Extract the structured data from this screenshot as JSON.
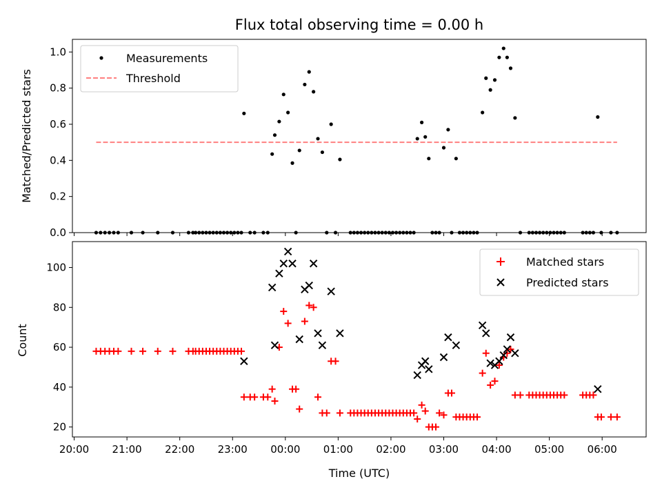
{
  "chart_data": [
    {
      "type": "scatter",
      "title": "Flux total observing time = 0.00 h",
      "xlabel": "",
      "ylabel": "Matched/Predicted stars",
      "xlim": [
        "19:58",
        "06:50"
      ],
      "ylim": [
        0,
        1.07
      ],
      "yticks": [
        "0.0",
        "0.2",
        "0.4",
        "0.6",
        "0.8",
        "1.0"
      ],
      "grid": false,
      "legend_position": "upper-left",
      "series": [
        {
          "name": "Measurements",
          "marker": "dot",
          "color": "#000000",
          "points": [
            [
              "20:25",
              0
            ],
            [
              "20:30",
              0
            ],
            [
              "20:35",
              0
            ],
            [
              "20:40",
              0
            ],
            [
              "20:45",
              0
            ],
            [
              "20:50",
              0
            ],
            [
              "21:05",
              0
            ],
            [
              "21:18",
              0
            ],
            [
              "21:35",
              0
            ],
            [
              "21:52",
              0
            ],
            [
              "22:10",
              0
            ],
            [
              "22:15",
              0
            ],
            [
              "22:18",
              0
            ],
            [
              "22:22",
              0
            ],
            [
              "22:26",
              0
            ],
            [
              "22:30",
              0
            ],
            [
              "22:34",
              0
            ],
            [
              "22:38",
              0
            ],
            [
              "22:42",
              0
            ],
            [
              "22:46",
              0
            ],
            [
              "22:50",
              0
            ],
            [
              "22:54",
              0
            ],
            [
              "22:58",
              0
            ],
            [
              "23:02",
              0
            ],
            [
              "23:06",
              0
            ],
            [
              "23:10",
              0
            ],
            [
              "23:13",
              0.66
            ],
            [
              "23:20",
              0
            ],
            [
              "23:25",
              0
            ],
            [
              "23:35",
              0
            ],
            [
              "23:40",
              0
            ],
            [
              "23:45",
              0.435
            ],
            [
              "23:48",
              0.54
            ],
            [
              "23:53",
              0.615
            ],
            [
              "23:58",
              0.765
            ],
            [
              "00:03",
              0.665
            ],
            [
              "00:08",
              0.385
            ],
            [
              "00:12",
              0
            ],
            [
              "00:16",
              0.455
            ],
            [
              "00:22",
              0.82
            ],
            [
              "00:27",
              0.89
            ],
            [
              "00:32",
              0.78
            ],
            [
              "00:37",
              0.52
            ],
            [
              "00:42",
              0.445
            ],
            [
              "00:47",
              0
            ],
            [
              "00:52",
              0.6
            ],
            [
              "00:57",
              0
            ],
            [
              "01:02",
              0.405
            ],
            [
              "01:14",
              0
            ],
            [
              "01:18",
              0
            ],
            [
              "01:22",
              0
            ],
            [
              "01:26",
              0
            ],
            [
              "01:30",
              0
            ],
            [
              "01:34",
              0
            ],
            [
              "01:38",
              0
            ],
            [
              "01:42",
              0
            ],
            [
              "01:46",
              0
            ],
            [
              "01:50",
              0
            ],
            [
              "01:54",
              0
            ],
            [
              "01:58",
              0
            ],
            [
              "02:02",
              0
            ],
            [
              "02:06",
              0
            ],
            [
              "02:10",
              0
            ],
            [
              "02:14",
              0
            ],
            [
              "02:18",
              0
            ],
            [
              "02:22",
              0
            ],
            [
              "02:26",
              0
            ],
            [
              "02:30",
              0.52
            ],
            [
              "02:35",
              0.61
            ],
            [
              "02:39",
              0.53
            ],
            [
              "02:43",
              0.41
            ],
            [
              "02:47",
              0
            ],
            [
              "02:51",
              0
            ],
            [
              "02:55",
              0
            ],
            [
              "03:00",
              0.47
            ],
            [
              "03:05",
              0.57
            ],
            [
              "03:09",
              0
            ],
            [
              "03:14",
              0.41
            ],
            [
              "03:18",
              0
            ],
            [
              "03:22",
              0
            ],
            [
              "03:26",
              0
            ],
            [
              "03:30",
              0
            ],
            [
              "03:34",
              0
            ],
            [
              "03:38",
              0
            ],
            [
              "03:44",
              0.665
            ],
            [
              "03:48",
              0.855
            ],
            [
              "03:53",
              0.79
            ],
            [
              "03:58",
              0.845
            ],
            [
              "04:03",
              0.97
            ],
            [
              "04:08",
              1.02
            ],
            [
              "04:12",
              0.97
            ],
            [
              "04:16",
              0.91
            ],
            [
              "04:21",
              0.635
            ],
            [
              "04:27",
              0
            ],
            [
              "04:37",
              0
            ],
            [
              "04:41",
              0
            ],
            [
              "04:45",
              0
            ],
            [
              "04:49",
              0
            ],
            [
              "04:53",
              0
            ],
            [
              "04:57",
              0
            ],
            [
              "05:01",
              0
            ],
            [
              "05:05",
              0
            ],
            [
              "05:09",
              0
            ],
            [
              "05:13",
              0
            ],
            [
              "05:17",
              0
            ],
            [
              "05:38",
              0
            ],
            [
              "05:42",
              0
            ],
            [
              "05:46",
              0
            ],
            [
              "05:50",
              0
            ],
            [
              "05:55",
              0.64
            ],
            [
              "05:59",
              0
            ],
            [
              "06:10",
              0
            ],
            [
              "06:17",
              0
            ]
          ]
        },
        {
          "name": "Threshold",
          "marker": "dashed-line",
          "color": "#ff7f7f",
          "x": [
            "20:25",
            "06:17"
          ],
          "y": 0.5
        }
      ]
    },
    {
      "type": "scatter",
      "title": "",
      "xlabel": "Time (UTC)",
      "ylabel": "Count",
      "xlim": [
        "19:58",
        "06:50"
      ],
      "ylim": [
        15,
        113
      ],
      "yticks": [
        "20",
        "40",
        "60",
        "80",
        "100"
      ],
      "xticks": [
        "20:00",
        "21:00",
        "22:00",
        "23:00",
        "00:00",
        "01:00",
        "02:00",
        "03:00",
        "04:00",
        "05:00",
        "06:00"
      ],
      "grid": false,
      "legend_position": "upper-right",
      "series": [
        {
          "name": "Matched stars",
          "marker": "plus",
          "color": "#ff0000",
          "points": [
            [
              "20:25",
              58
            ],
            [
              "20:30",
              58
            ],
            [
              "20:35",
              58
            ],
            [
              "20:40",
              58
            ],
            [
              "20:45",
              58
            ],
            [
              "20:50",
              58
            ],
            [
              "21:05",
              58
            ],
            [
              "21:18",
              58
            ],
            [
              "21:35",
              58
            ],
            [
              "21:52",
              58
            ],
            [
              "22:10",
              58
            ],
            [
              "22:15",
              58
            ],
            [
              "22:18",
              58
            ],
            [
              "22:22",
              58
            ],
            [
              "22:26",
              58
            ],
            [
              "22:30",
              58
            ],
            [
              "22:34",
              58
            ],
            [
              "22:38",
              58
            ],
            [
              "22:42",
              58
            ],
            [
              "22:46",
              58
            ],
            [
              "22:50",
              58
            ],
            [
              "22:54",
              58
            ],
            [
              "22:58",
              58
            ],
            [
              "23:02",
              58
            ],
            [
              "23:06",
              58
            ],
            [
              "23:10",
              58
            ],
            [
              "23:13",
              35
            ],
            [
              "23:20",
              35
            ],
            [
              "23:25",
              35
            ],
            [
              "23:35",
              35
            ],
            [
              "23:40",
              35
            ],
            [
              "23:45",
              39
            ],
            [
              "23:48",
              33
            ],
            [
              "23:53",
              60
            ],
            [
              "23:58",
              78
            ],
            [
              "00:03",
              72
            ],
            [
              "00:08",
              39
            ],
            [
              "00:12",
              39
            ],
            [
              "00:16",
              29
            ],
            [
              "00:22",
              73
            ],
            [
              "00:27",
              81
            ],
            [
              "00:32",
              80
            ],
            [
              "00:37",
              35
            ],
            [
              "00:42",
              27
            ],
            [
              "00:47",
              27
            ],
            [
              "00:52",
              53
            ],
            [
              "00:57",
              53
            ],
            [
              "01:02",
              27
            ],
            [
              "01:14",
              27
            ],
            [
              "01:18",
              27
            ],
            [
              "01:22",
              27
            ],
            [
              "01:26",
              27
            ],
            [
              "01:30",
              27
            ],
            [
              "01:34",
              27
            ],
            [
              "01:38",
              27
            ],
            [
              "01:42",
              27
            ],
            [
              "01:46",
              27
            ],
            [
              "01:50",
              27
            ],
            [
              "01:54",
              27
            ],
            [
              "01:58",
              27
            ],
            [
              "02:02",
              27
            ],
            [
              "02:06",
              27
            ],
            [
              "02:10",
              27
            ],
            [
              "02:14",
              27
            ],
            [
              "02:18",
              27
            ],
            [
              "02:22",
              27
            ],
            [
              "02:26",
              27
            ],
            [
              "02:30",
              24
            ],
            [
              "02:35",
              31
            ],
            [
              "02:39",
              28
            ],
            [
              "02:43",
              20
            ],
            [
              "02:47",
              20
            ],
            [
              "02:51",
              20
            ],
            [
              "02:55",
              27
            ],
            [
              "03:00",
              26
            ],
            [
              "03:05",
              37
            ],
            [
              "03:09",
              37
            ],
            [
              "03:14",
              25
            ],
            [
              "03:18",
              25
            ],
            [
              "03:22",
              25
            ],
            [
              "03:26",
              25
            ],
            [
              "03:30",
              25
            ],
            [
              "03:34",
              25
            ],
            [
              "03:38",
              25
            ],
            [
              "03:44",
              47
            ],
            [
              "03:48",
              57
            ],
            [
              "03:53",
              41
            ],
            [
              "03:58",
              43
            ],
            [
              "04:03",
              51
            ],
            [
              "04:08",
              55
            ],
            [
              "04:12",
              57
            ],
            [
              "04:16",
              59
            ],
            [
              "04:21",
              36
            ],
            [
              "04:27",
              36
            ],
            [
              "04:37",
              36
            ],
            [
              "04:41",
              36
            ],
            [
              "04:45",
              36
            ],
            [
              "04:49",
              36
            ],
            [
              "04:53",
              36
            ],
            [
              "04:57",
              36
            ],
            [
              "05:01",
              36
            ],
            [
              "05:05",
              36
            ],
            [
              "05:09",
              36
            ],
            [
              "05:13",
              36
            ],
            [
              "05:17",
              36
            ],
            [
              "05:38",
              36
            ],
            [
              "05:42",
              36
            ],
            [
              "05:46",
              36
            ],
            [
              "05:50",
              36
            ],
            [
              "05:55",
              25
            ],
            [
              "05:59",
              25
            ],
            [
              "06:10",
              25
            ],
            [
              "06:17",
              25
            ]
          ]
        },
        {
          "name": "Predicted stars",
          "marker": "x",
          "color": "#000000",
          "points": [
            [
              "23:13",
              53
            ],
            [
              "23:45",
              90
            ],
            [
              "23:48",
              61
            ],
            [
              "23:53",
              97
            ],
            [
              "23:58",
              102
            ],
            [
              "00:03",
              108
            ],
            [
              "00:08",
              102
            ],
            [
              "00:16",
              64
            ],
            [
              "00:22",
              89
            ],
            [
              "00:27",
              91
            ],
            [
              "00:32",
              102
            ],
            [
              "00:37",
              67
            ],
            [
              "00:42",
              61
            ],
            [
              "00:52",
              88
            ],
            [
              "01:02",
              67
            ],
            [
              "02:30",
              46
            ],
            [
              "02:35",
              51
            ],
            [
              "02:39",
              53
            ],
            [
              "02:43",
              49
            ],
            [
              "03:00",
              55
            ],
            [
              "03:05",
              65
            ],
            [
              "03:14",
              61
            ],
            [
              "03:44",
              71
            ],
            [
              "03:48",
              67
            ],
            [
              "03:53",
              52
            ],
            [
              "03:58",
              51
            ],
            [
              "04:03",
              53
            ],
            [
              "04:08",
              56
            ],
            [
              "04:12",
              59
            ],
            [
              "04:16",
              65
            ],
            [
              "04:21",
              57
            ],
            [
              "05:55",
              39
            ]
          ]
        }
      ]
    }
  ]
}
